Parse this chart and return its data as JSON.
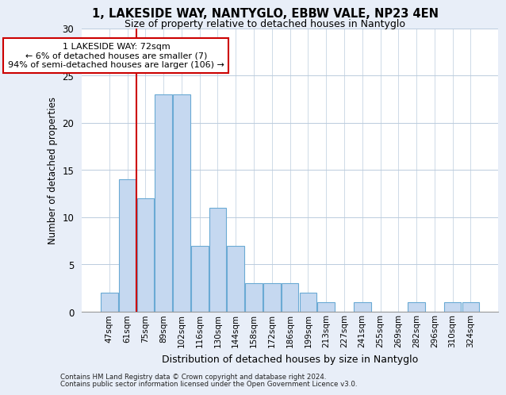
{
  "title_line1": "1, LAKESIDE WAY, NANTYGLO, EBBW VALE, NP23 4EN",
  "title_line2": "Size of property relative to detached houses in Nantyglo",
  "xlabel": "Distribution of detached houses by size in Nantyglo",
  "ylabel": "Number of detached properties",
  "categories": [
    "47sqm",
    "61sqm",
    "75sqm",
    "89sqm",
    "102sqm",
    "116sqm",
    "130sqm",
    "144sqm",
    "158sqm",
    "172sqm",
    "186sqm",
    "199sqm",
    "213sqm",
    "227sqm",
    "241sqm",
    "255sqm",
    "269sqm",
    "282sqm",
    "296sqm",
    "310sqm",
    "324sqm"
  ],
  "values": [
    2,
    14,
    12,
    23,
    23,
    7,
    11,
    7,
    3,
    3,
    3,
    2,
    1,
    0,
    1,
    0,
    0,
    1,
    0,
    1,
    1
  ],
  "bar_color": "#c5d8f0",
  "bar_edge_color": "#6aaad4",
  "vline_x_index": 2,
  "annotation_text": "1 LAKESIDE WAY: 72sqm\n← 6% of detached houses are smaller (7)\n94% of semi-detached houses are larger (106) →",
  "annotation_box_facecolor": "white",
  "annotation_box_edgecolor": "#cc0000",
  "vline_color": "#cc0000",
  "ylim": [
    0,
    30
  ],
  "yticks": [
    0,
    5,
    10,
    15,
    20,
    25,
    30
  ],
  "footer_line1": "Contains HM Land Registry data © Crown copyright and database right 2024.",
  "footer_line2": "Contains public sector information licensed under the Open Government Licence v3.0.",
  "bg_color": "#e8eef8",
  "plot_bg_color": "#ffffff",
  "grid_color": "#bbccdd"
}
